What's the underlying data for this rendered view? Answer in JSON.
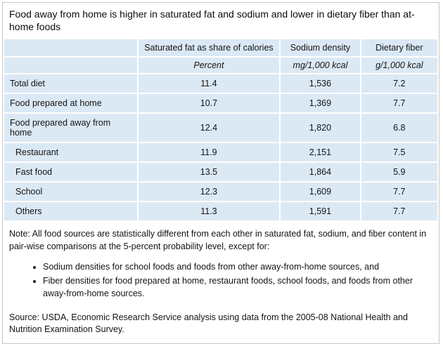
{
  "title": "Food away from home is higher in saturated fat and sodium and lower in dietary fiber than at-home foods",
  "colors": {
    "cell_bg": "#dbe9f5",
    "panel_border": "#c6c6c6",
    "text": "#141414"
  },
  "table": {
    "columns": [
      "Saturated fat as share of calories",
      "Sodium density",
      "Dietary fiber"
    ],
    "units": [
      "Percent",
      "mg/1,000 kcal",
      "g/1,000 kcal"
    ],
    "rows": [
      {
        "label": "Total diet",
        "indent": false,
        "values": [
          "11.4",
          "1,536",
          "7.2"
        ]
      },
      {
        "label": "Food prepared at home",
        "indent": false,
        "values": [
          "10.7",
          "1,369",
          "7.7"
        ]
      },
      {
        "label": "Food prepared away from home",
        "indent": false,
        "values": [
          "12.4",
          "1,820",
          "6.8"
        ]
      },
      {
        "label": "Restaurant",
        "indent": true,
        "values": [
          "11.9",
          "2,151",
          "7.5"
        ]
      },
      {
        "label": "Fast food",
        "indent": true,
        "values": [
          "13.5",
          "1,864",
          "5.9"
        ]
      },
      {
        "label": "School",
        "indent": true,
        "values": [
          "12.3",
          "1,609",
          "7.7"
        ]
      },
      {
        "label": "Others",
        "indent": true,
        "values": [
          "11.3",
          "1,591",
          "7.7"
        ]
      }
    ]
  },
  "note": {
    "text": "Note: All food sources are statistically different from each other in saturated fat, sodium, and fiber content in pair-wise comparisons at the 5-percent probability level, except for:",
    "bullets": [
      "Sodium densities for school foods and foods from other away-from-home sources, and",
      "Fiber densities for food prepared at home, restaurant foods, school foods, and foods from other away-from-home sources."
    ]
  },
  "source": "Source: USDA, Economic Research Service analysis using data from the 2005-08 National Health and Nutrition Examination Survey.",
  "chart_data": {
    "type": "table",
    "title": "Food away from home is higher in saturated fat and sodium and lower in dietary fiber than at-home foods",
    "categories": [
      "Total diet",
      "Food prepared at home",
      "Food prepared away from home",
      "Restaurant",
      "Fast food",
      "School",
      "Others"
    ],
    "series": [
      {
        "name": "Saturated fat as share of calories",
        "unit": "Percent",
        "values": [
          11.4,
          10.7,
          12.4,
          11.9,
          13.5,
          12.3,
          11.3
        ]
      },
      {
        "name": "Sodium density",
        "unit": "mg/1,000 kcal",
        "values": [
          1536,
          1369,
          1820,
          2151,
          1864,
          1609,
          1591
        ]
      },
      {
        "name": "Dietary fiber",
        "unit": "g/1,000 kcal",
        "values": [
          7.2,
          7.7,
          6.8,
          7.5,
          5.9,
          7.7,
          7.7
        ]
      }
    ],
    "layout": {
      "subcategory_rows": [
        "Restaurant",
        "Fast food",
        "School",
        "Others"
      ],
      "cell_background": "#dbe9f5"
    }
  }
}
